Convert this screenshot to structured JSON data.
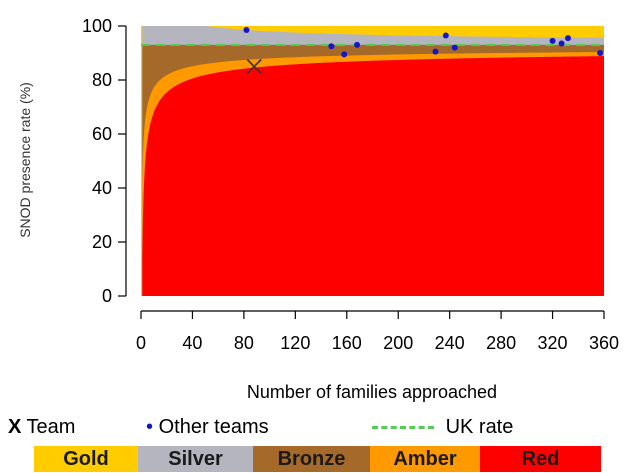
{
  "chart_data": {
    "type": "area",
    "title": "",
    "xlabel": "Number of families approached",
    "ylabel": "SNOD presence rate (%)",
    "xlim": [
      0,
      360
    ],
    "ylim": [
      0,
      100
    ],
    "x_ticks": [
      0,
      40,
      80,
      120,
      160,
      200,
      240,
      280,
      320,
      360
    ],
    "y_ticks": [
      0,
      20,
      40,
      60,
      80,
      100
    ],
    "grid": false,
    "uk_rate": 93,
    "team": {
      "name": "Team",
      "x": 88,
      "y": 85
    },
    "other_teams": {
      "name": "Other teams",
      "points": [
        {
          "x": 82,
          "y": 98.5
        },
        {
          "x": 148,
          "y": 92.5
        },
        {
          "x": 158,
          "y": 89.5
        },
        {
          "x": 168,
          "y": 93
        },
        {
          "x": 229,
          "y": 90.5
        },
        {
          "x": 237,
          "y": 96.5
        },
        {
          "x": 244,
          "y": 92
        },
        {
          "x": 320,
          "y": 94.5
        },
        {
          "x": 327,
          "y": 93.5
        },
        {
          "x": 332,
          "y": 95.5
        },
        {
          "x": 357,
          "y": 90
        }
      ]
    },
    "bands": [
      {
        "name": "Gold",
        "color": "#ffcc00"
      },
      {
        "name": "Silver",
        "color": "#b5b5c0"
      },
      {
        "name": "Bronze",
        "color": "#a5692a"
      },
      {
        "name": "Amber",
        "color": "#ff9900"
      },
      {
        "name": "Red",
        "color": "#ff0000"
      }
    ],
    "legend": {
      "team_label": "Team",
      "team_marker": "X",
      "other_label": "Other teams",
      "uk_label": "UK rate",
      "placement": "bottom"
    }
  }
}
